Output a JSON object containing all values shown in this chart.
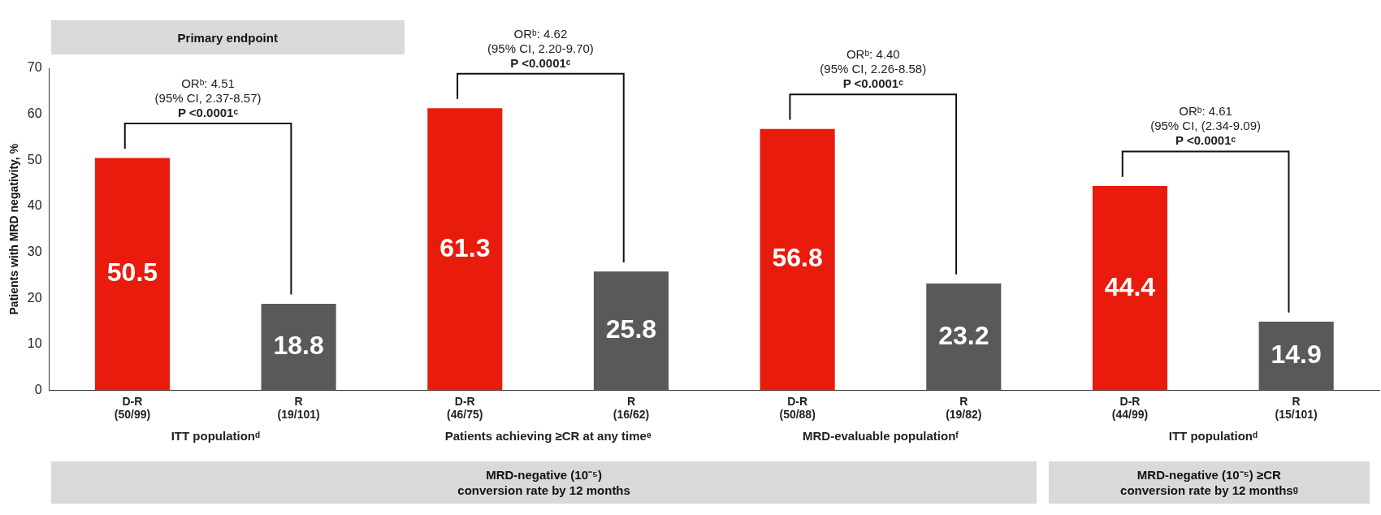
{
  "chart_data": {
    "type": "bar",
    "ylabel": "Patients with MRD negativity, %",
    "categories": [
      "D-R\n(50/99)",
      "R\n(19/101)",
      "D-R\n(46/75)",
      "R\n(16/62)",
      "D-R\n(50/88)",
      "R\n(19/82)",
      "D-R\n(44/99)",
      "R\n(15/101)"
    ],
    "values": [
      50.5,
      18.8,
      61.3,
      25.8,
      56.8,
      23.2,
      44.4,
      14.9
    ],
    "colors": [
      "#e81b0c",
      "#595959",
      "#e81b0c",
      "#595959",
      "#e81b0c",
      "#595959",
      "#e81b0c",
      "#595959"
    ],
    "ylim": [
      0,
      70
    ],
    "yticks": [
      0,
      10,
      20,
      30,
      40,
      50,
      60,
      70
    ],
    "grid": false,
    "legend": false,
    "data_labels": true,
    "annotations": [
      "Primary endpoint",
      "ORᵇ: 4.51\n(95% CI, 2.37-8.57)\nP <0.0001ᶜ",
      "ORᵇ: 4.62\n(95% CI, 2.20-9.70)\nP <0.0001ᶜ",
      "ORᵇ: 4.40\n(95% CI, 2.26-8.58)\nP <0.0001ᶜ",
      "ORᵇ: 4.61\n(95% CI, (2.34-9.09)\nP <0.0001ᶜ",
      "ITT populationᵈ",
      "Patients achieving ≥CR at any timeᵉ",
      "MRD-evaluable populationᶠ",
      "ITT populationᵈ",
      "MRD-negative (10⁻⁵)\nconversion rate by 12 months",
      "MRD-negative (10⁻⁵) ≥CR\nconversion rate by 12 monthsᵍ"
    ]
  }
}
